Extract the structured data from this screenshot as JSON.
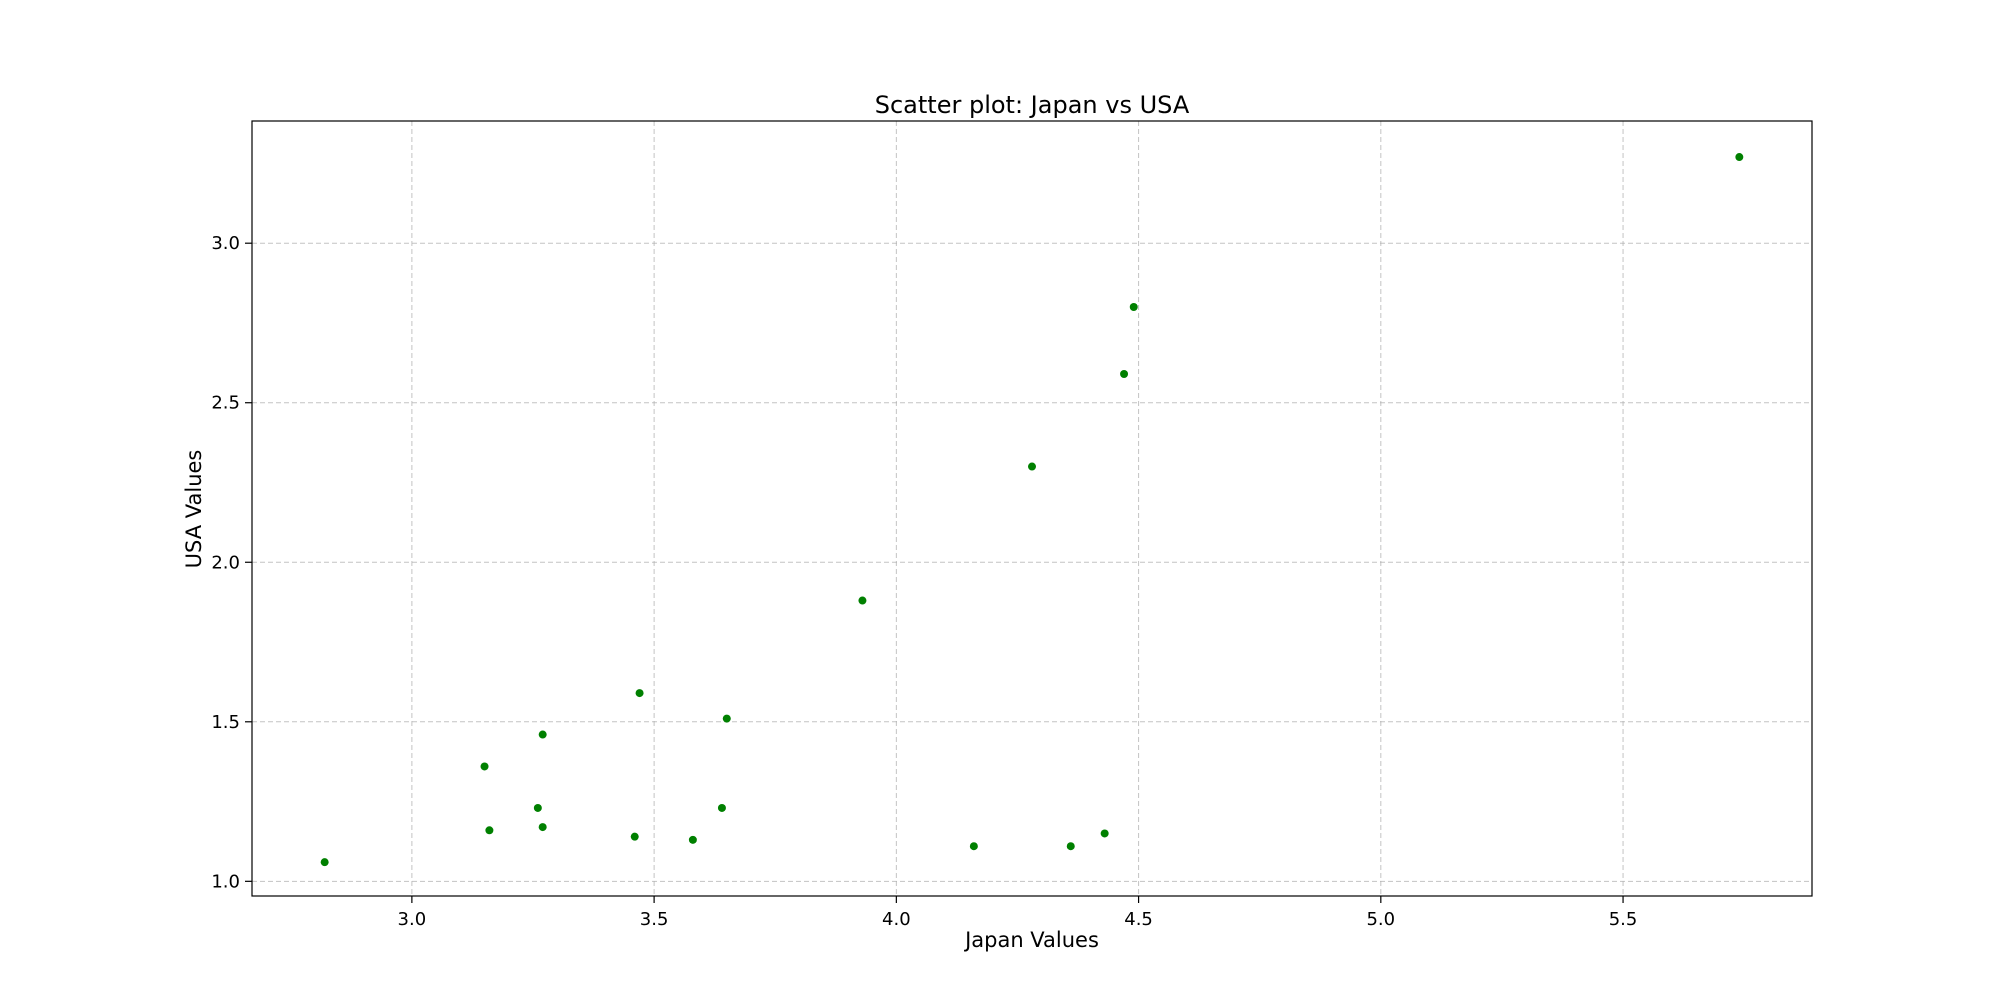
{
  "chart_data": {
    "type": "scatter",
    "title": "Scatter plot: Japan vs USA",
    "xlabel": "Japan Values",
    "ylabel": "USA Values",
    "xlim": [
      2.67,
      5.89
    ],
    "ylim": [
      0.954,
      3.383
    ],
    "xticks": [
      3.0,
      3.5,
      4.0,
      4.5,
      5.0,
      5.5
    ],
    "xtick_labels": [
      "3.0",
      "3.5",
      "4.0",
      "4.5",
      "5.0",
      "5.5"
    ],
    "yticks": [
      1.0,
      1.5,
      2.0,
      2.5,
      3.0
    ],
    "ytick_labels": [
      "1.0",
      "1.5",
      "2.0",
      "2.5",
      "3.0"
    ],
    "grid": true,
    "marker_color": "#008000",
    "points": [
      {
        "x": 2.82,
        "y": 1.06
      },
      {
        "x": 3.15,
        "y": 1.36
      },
      {
        "x": 3.16,
        "y": 1.16
      },
      {
        "x": 3.26,
        "y": 1.23
      },
      {
        "x": 3.27,
        "y": 1.46
      },
      {
        "x": 3.27,
        "y": 1.17
      },
      {
        "x": 3.46,
        "y": 1.14
      },
      {
        "x": 3.47,
        "y": 1.59
      },
      {
        "x": 3.58,
        "y": 1.13
      },
      {
        "x": 3.64,
        "y": 1.23
      },
      {
        "x": 3.65,
        "y": 1.51
      },
      {
        "x": 3.93,
        "y": 1.88
      },
      {
        "x": 4.16,
        "y": 1.11
      },
      {
        "x": 4.28,
        "y": 2.3
      },
      {
        "x": 4.36,
        "y": 1.11
      },
      {
        "x": 4.43,
        "y": 1.15
      },
      {
        "x": 4.47,
        "y": 2.59
      },
      {
        "x": 4.49,
        "y": 2.8
      },
      {
        "x": 5.74,
        "y": 3.27
      }
    ]
  }
}
